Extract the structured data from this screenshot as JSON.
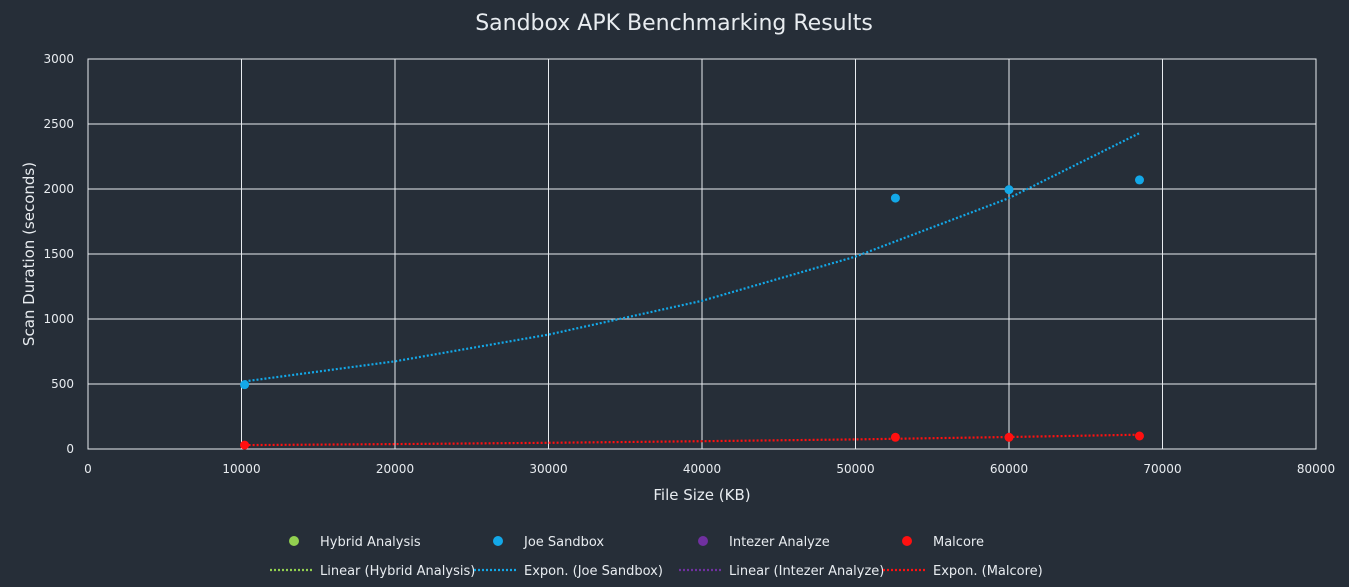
{
  "chart_data": {
    "type": "scatter",
    "title": "Sandbox APK Benchmarking Results",
    "xlabel": "File Size (KB)",
    "ylabel": "Scan Duration (seconds)",
    "xlim": [
      0,
      80000
    ],
    "ylim": [
      0,
      3000
    ],
    "x_ticks": [
      0,
      10000,
      20000,
      30000,
      40000,
      50000,
      60000,
      70000,
      80000
    ],
    "y_ticks": [
      0,
      500,
      1000,
      1500,
      2000,
      2500,
      3000
    ],
    "grid": true,
    "legend_position": "bottom",
    "series": [
      {
        "name": "Hybrid Analysis",
        "color": "#92d050",
        "points": []
      },
      {
        "name": "Joe Sandbox",
        "color": "#13a8e8",
        "points": [
          [
            10200,
            495
          ],
          [
            52600,
            1930
          ],
          [
            60000,
            1995
          ],
          [
            68500,
            2070
          ]
        ]
      },
      {
        "name": "Intezer Analyze",
        "color": "#7030a0",
        "points": []
      },
      {
        "name": "Malcore",
        "color": "#ff1010",
        "points": [
          [
            10200,
            30
          ],
          [
            52600,
            90
          ],
          [
            60000,
            90
          ],
          [
            68500,
            100
          ]
        ]
      }
    ],
    "trendlines": [
      {
        "name": "Linear (Hybrid Analysis)",
        "type": "linear",
        "color": "#92d050",
        "points": []
      },
      {
        "name": "Expon. (Joe Sandbox)",
        "type": "exponential",
        "color": "#13a8e8",
        "points": [
          [
            10200,
            520
          ],
          [
            20000,
            675
          ],
          [
            30000,
            880
          ],
          [
            40000,
            1140
          ],
          [
            50000,
            1480
          ],
          [
            60000,
            1930
          ],
          [
            68500,
            2430
          ]
        ]
      },
      {
        "name": "Linear (Intezer Analyze)",
        "type": "linear",
        "color": "#7030a0",
        "points": []
      },
      {
        "name": "Expon. (Malcore)",
        "type": "exponential",
        "color": "#ff1010",
        "points": [
          [
            10200,
            30
          ],
          [
            20000,
            38
          ],
          [
            30000,
            48
          ],
          [
            40000,
            60
          ],
          [
            50000,
            74
          ],
          [
            60000,
            92
          ],
          [
            68500,
            110
          ]
        ]
      }
    ]
  }
}
